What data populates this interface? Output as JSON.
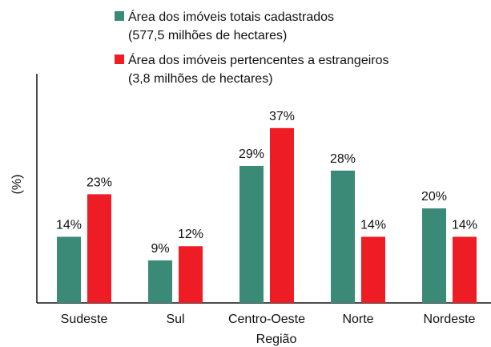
{
  "chart_data": {
    "type": "bar",
    "categories": [
      "Sudeste",
      "Sul",
      "Centro-Oeste",
      "Norte",
      "Nordeste"
    ],
    "series": [
      {
        "name": "Área dos imóveis totais cadastrados\n(577,5 milhões de hectares)",
        "color": "#3b8a78",
        "values": [
          14,
          9,
          29,
          28,
          20
        ],
        "value_labels": [
          "14%",
          "9%",
          "29%",
          "28%",
          "20%"
        ]
      },
      {
        "name": "Área dos imóveis pertencentes a estrangeiros\n(3,8 milhões de hectares)",
        "color": "#ee1d25",
        "values": [
          23,
          12,
          37,
          14,
          14
        ],
        "value_labels": [
          "23%",
          "12%",
          "37%",
          "14%",
          "14%"
        ]
      }
    ],
    "ylabel": "(%)",
    "xlabel": "Região",
    "ylim": [
      0,
      48.5
    ],
    "grid": false
  }
}
